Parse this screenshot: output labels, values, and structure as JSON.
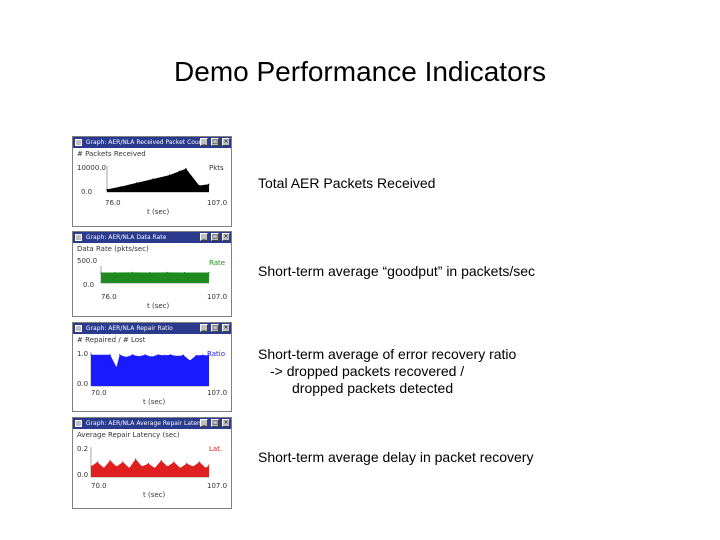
{
  "slide": {
    "title": "Demo Performance Indicators"
  },
  "panels": [
    {
      "window_title": "Graph: AER/NLA Received Packet Count",
      "ylabel": "# Packets Received",
      "ymax_label": "10000.0",
      "ymin_label": "0.0",
      "series_label": "Pkts",
      "xmin_label": "76.0",
      "xmax_label": "107.0",
      "xlabel": "t (sec)",
      "color": "#000000",
      "description": [
        "Total AER Packets Received"
      ]
    },
    {
      "window_title": "Graph: AER/NLA Data Rate",
      "ylabel": "Data Rate (pkts/sec)",
      "ymax_label": "500.0",
      "ymin_label": "0.0",
      "series_label": "Rate",
      "xmin_label": "76.0",
      "xmax_label": "107.0",
      "xlabel": "t (sec)",
      "color": "#1f8a1f",
      "description": [
        "Short-term average “goodput” in packets/sec"
      ]
    },
    {
      "window_title": "Graph: AER/NLA Repair Ratio",
      "ylabel": "# Repaired / # Lost",
      "ymax_label": "1.0",
      "ymin_label": "0.0",
      "series_label": "Ratio",
      "xmin_label": "70.0",
      "xmax_label": "107.0",
      "xlabel": "t (sec)",
      "color": "#1a1aff",
      "description": [
        "Short-term average of error recovery ratio",
        "-> dropped packets recovered /",
        "dropped packets detected"
      ]
    },
    {
      "window_title": "Graph: AER/NLA Average Repair Latency",
      "ylabel": "Average Repair Latency (sec)",
      "ymax_label": "0.2",
      "ymin_label": "0.0",
      "series_label": "Lat.",
      "xmin_label": "70.0",
      "xmax_label": "107.0",
      "xlabel": "t (sec)",
      "color": "#e02020",
      "description": [
        "Short-term average delay in packet recovery"
      ]
    }
  ],
  "chart_data": [
    {
      "type": "area",
      "title": "# Packets Received",
      "xlabel": "t (sec)",
      "ylabel": "# Packets Received",
      "xlim": [
        76.0,
        107.0
      ],
      "ylim": [
        0.0,
        10000.0
      ],
      "series": [
        {
          "name": "Pkts",
          "x": [
            76,
            80,
            85,
            90,
            95,
            98,
            100,
            104,
            107
          ],
          "values": [
            1000,
            2000,
            3500,
            5000,
            6500,
            8000,
            9000,
            2500,
            3000
          ]
        }
      ]
    },
    {
      "type": "area",
      "title": "Data Rate (pkts/sec)",
      "xlabel": "t (sec)",
      "ylabel": "Data Rate (pkts/sec)",
      "xlim": [
        76.0,
        107.0
      ],
      "ylim": [
        0.0,
        500.0
      ],
      "series": [
        {
          "name": "Rate",
          "x": [
            76,
            80,
            85,
            90,
            95,
            100,
            107
          ],
          "values": [
            310,
            310,
            312,
            310,
            311,
            310,
            310
          ]
        }
      ]
    },
    {
      "type": "area",
      "title": "# Repaired / # Lost",
      "xlabel": "t (sec)",
      "ylabel": "# Repaired / # Lost",
      "xlim": [
        70.0,
        107.0
      ],
      "ylim": [
        0.0,
        1.0
      ],
      "series": [
        {
          "name": "Ratio",
          "x": [
            70,
            76,
            78,
            79,
            81,
            83,
            85,
            87,
            89,
            91,
            93,
            95,
            97,
            99,
            101,
            103,
            105,
            107
          ],
          "values": [
            0.92,
            0.92,
            0.55,
            0.92,
            0.85,
            0.92,
            0.87,
            0.92,
            0.86,
            0.92,
            0.9,
            0.92,
            0.88,
            0.91,
            0.75,
            0.9,
            0.91,
            0.9
          ]
        }
      ]
    },
    {
      "type": "area",
      "title": "Average Repair Latency (sec)",
      "xlabel": "t (sec)",
      "ylabel": "Average Repair Latency (sec)",
      "xlim": [
        70.0,
        107.0
      ],
      "ylim": [
        0.0,
        0.2
      ],
      "series": [
        {
          "name": "Lat.",
          "x": [
            70,
            72,
            74,
            76,
            78,
            80,
            82,
            84,
            86,
            88,
            90,
            92,
            94,
            96,
            98,
            100,
            102,
            104,
            106,
            107
          ],
          "values": [
            0.07,
            0.1,
            0.06,
            0.11,
            0.07,
            0.1,
            0.06,
            0.12,
            0.07,
            0.09,
            0.06,
            0.11,
            0.07,
            0.1,
            0.06,
            0.09,
            0.07,
            0.1,
            0.06,
            0.08
          ]
        }
      ]
    }
  ]
}
